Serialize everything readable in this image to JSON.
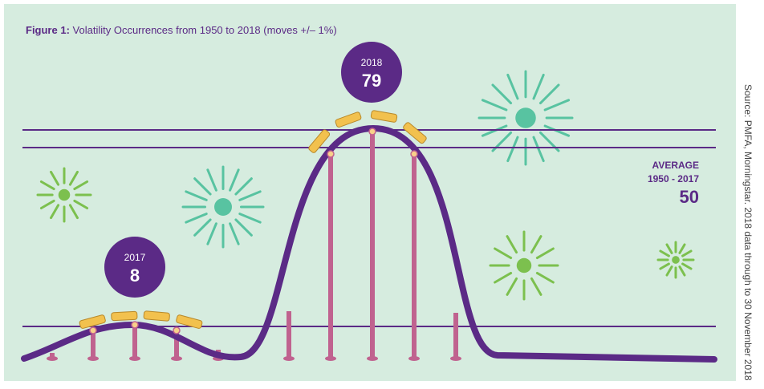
{
  "title": {
    "label": "Figure 1:",
    "text": "Volatility Occurrences from 1950 to 2018 (moves +/– 1%)"
  },
  "callouts": [
    {
      "year": "2017",
      "value": 8
    },
    {
      "year": "2018",
      "value": 79
    }
  ],
  "average": {
    "label": "AVERAGE",
    "period": "1950 - 2017",
    "value": 50
  },
  "source": "Source: PMFA, Morningstar. 2018 data through to 30 November 2018"
}
